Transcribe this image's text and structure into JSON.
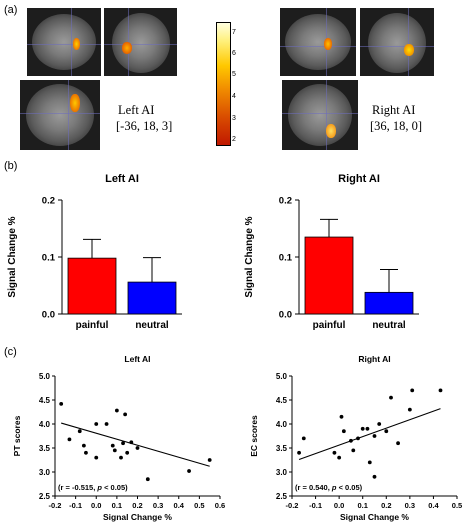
{
  "panel_a": {
    "letter": "(a)",
    "left_roi": {
      "name": "Left AI",
      "coords": "[-36, 18, 3]"
    },
    "right_roi": {
      "name": "Right AI",
      "coords": "[36, 18, 0]"
    },
    "colorbar": {
      "ticks": [
        "7",
        "6",
        "5",
        "4",
        "3",
        "2"
      ],
      "colors": [
        "#c01800",
        "#f08a00",
        "#ffc800",
        "#ffffe0"
      ]
    }
  },
  "panel_b": {
    "letter": "(b)",
    "ylabel": "Signal Change %",
    "yticks": [
      "0.0",
      "0.1",
      "0.2"
    ]
  },
  "panel_c": {
    "letter": "(c)",
    "xlabel": "Signal Change %"
  },
  "chart_data": [
    {
      "type": "bar",
      "title": "Left AI",
      "categories": [
        "painful",
        "neutral"
      ],
      "values": [
        0.098,
        0.056
      ],
      "errors": [
        0.033,
        0.043
      ],
      "colors": [
        "#ff0000",
        "#0000ff"
      ],
      "ylabel": "Signal Change %",
      "ylim": [
        0.0,
        0.2
      ],
      "yticks": [
        "0.0",
        "0.1",
        "0.2"
      ]
    },
    {
      "type": "bar",
      "title": "Right AI",
      "categories": [
        "painful",
        "neutral"
      ],
      "values": [
        0.135,
        0.038
      ],
      "errors": [
        0.031,
        0.04
      ],
      "colors": [
        "#ff0000",
        "#0000ff"
      ],
      "ylabel": "Signal Change %",
      "ylim": [
        0.0,
        0.2
      ],
      "yticks": [
        "0.0",
        "0.1",
        "0.2"
      ]
    },
    {
      "type": "scatter",
      "title": "Left AI",
      "xlabel": "Signal Change %",
      "ylabel": "PT scores",
      "xlim": [
        -0.2,
        0.6
      ],
      "ylim": [
        2.5,
        5.0
      ],
      "xticks": [
        "-0.2",
        "-0.1",
        "0.0",
        "0.1",
        "0.2",
        "0.3",
        "0.4",
        "0.5",
        "0.6"
      ],
      "yticks": [
        "2.5",
        "3.0",
        "3.5",
        "4.0",
        "4.5",
        "5.0"
      ],
      "annotation_prefix": "(r = -0.515, ",
      "annotation_p": "p",
      "annotation_suffix": " < 0.05)",
      "fit": [
        [
          -0.17,
          4.02
        ],
        [
          0.55,
          3.12
        ]
      ],
      "points": [
        [
          -0.17,
          4.42
        ],
        [
          -0.13,
          3.68
        ],
        [
          -0.08,
          3.85
        ],
        [
          -0.06,
          3.55
        ],
        [
          -0.05,
          3.4
        ],
        [
          0.0,
          4.0
        ],
        [
          0.0,
          3.3
        ],
        [
          0.05,
          4.0
        ],
        [
          0.08,
          3.55
        ],
        [
          0.09,
          3.45
        ],
        [
          0.1,
          4.28
        ],
        [
          0.12,
          3.3
        ],
        [
          0.13,
          3.6
        ],
        [
          0.14,
          4.2
        ],
        [
          0.15,
          3.4
        ],
        [
          0.17,
          3.62
        ],
        [
          0.2,
          3.5
        ],
        [
          0.25,
          2.85
        ],
        [
          0.45,
          3.02
        ],
        [
          0.55,
          3.25
        ]
      ]
    },
    {
      "type": "scatter",
      "title": "Right AI",
      "xlabel": "Signal Change %",
      "ylabel": "EC scores",
      "xlim": [
        -0.2,
        0.5
      ],
      "ylim": [
        2.5,
        5.0
      ],
      "xticks": [
        "-0.2",
        "-0.1",
        "0.0",
        "0.1",
        "0.2",
        "0.3",
        "0.4",
        "0.5"
      ],
      "yticks": [
        "2.5",
        "3.0",
        "3.5",
        "4.0",
        "4.5",
        "5.0"
      ],
      "annotation_prefix": "(r = 0.540, ",
      "annotation_p": "p",
      "annotation_suffix": " < 0.05)",
      "fit": [
        [
          -0.17,
          3.26
        ],
        [
          0.43,
          4.32
        ]
      ],
      "points": [
        [
          -0.17,
          3.4
        ],
        [
          -0.15,
          3.7
        ],
        [
          -0.02,
          3.4
        ],
        [
          0.0,
          3.3
        ],
        [
          0.01,
          4.15
        ],
        [
          0.02,
          3.85
        ],
        [
          0.05,
          3.65
        ],
        [
          0.06,
          3.45
        ],
        [
          0.08,
          3.7
        ],
        [
          0.1,
          3.9
        ],
        [
          0.12,
          3.9
        ],
        [
          0.13,
          3.2
        ],
        [
          0.15,
          3.75
        ],
        [
          0.15,
          2.9
        ],
        [
          0.17,
          4.0
        ],
        [
          0.2,
          3.85
        ],
        [
          0.22,
          4.55
        ],
        [
          0.25,
          3.6
        ],
        [
          0.3,
          4.3
        ],
        [
          0.31,
          4.7
        ],
        [
          0.43,
          4.7
        ]
      ]
    }
  ]
}
